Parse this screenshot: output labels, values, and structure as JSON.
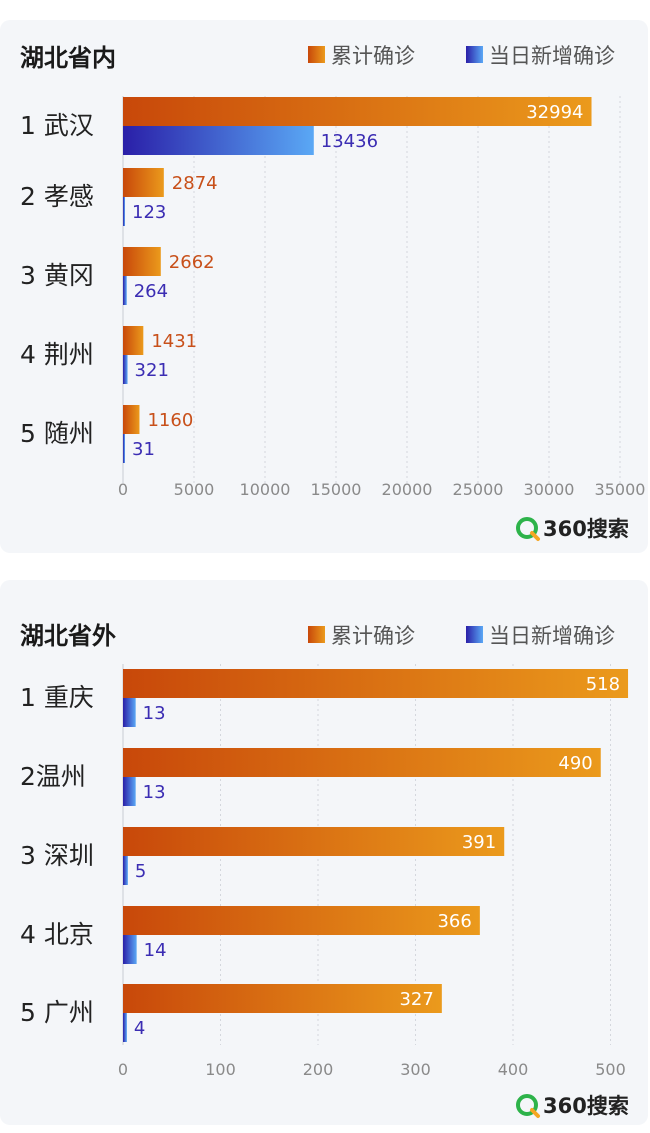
{
  "charts": [
    {
      "title": "湖北省内",
      "legend": {
        "cumulative": "累计确诊",
        "new": "当日新增确诊"
      },
      "brand": "360搜索",
      "categories": [
        "1 武汉",
        "2 孝感",
        "3 黄冈",
        "4 荆州",
        "5 随州"
      ]
    },
    {
      "title": "湖北省外",
      "legend": {
        "cumulative": "累计确诊",
        "new": "当日新增确诊"
      },
      "brand": "360搜索",
      "categories": [
        "1 重庆",
        "2温州",
        "3 深圳",
        "4 北京",
        "5 广州"
      ]
    }
  ],
  "chart_data": [
    {
      "type": "bar",
      "orientation": "horizontal",
      "title": "湖北省内",
      "categories": [
        "1 武汉",
        "2 孝感",
        "3 黄冈",
        "4 荆州",
        "5 随州"
      ],
      "series": [
        {
          "name": "累计确诊",
          "values": [
            32994,
            2874,
            2662,
            1431,
            1160
          ]
        },
        {
          "name": "当日新增确诊",
          "values": [
            13436,
            123,
            264,
            321,
            31
          ]
        }
      ],
      "xlim": [
        0,
        35000
      ],
      "xticks": [
        0,
        5000,
        10000,
        15000,
        20000,
        25000,
        30000,
        35000
      ],
      "grid": true,
      "legend_position": "top-right"
    },
    {
      "type": "bar",
      "orientation": "horizontal",
      "title": "湖北省外",
      "categories": [
        "1 重庆",
        "2温州",
        "3 深圳",
        "4 北京",
        "5 广州"
      ],
      "series": [
        {
          "name": "累计确诊",
          "values": [
            518,
            490,
            391,
            366,
            327
          ]
        },
        {
          "name": "当日新增确诊",
          "values": [
            13,
            13,
            5,
            14,
            4
          ]
        }
      ],
      "xlim": [
        0,
        520
      ],
      "xticks": [
        0,
        100,
        200,
        300,
        400,
        500
      ],
      "grid": true,
      "legend_position": "top-right"
    }
  ],
  "colors": {
    "cumulative_start": "#c8480a",
    "cumulative_end": "#eb9a1c",
    "new_start": "#2a1fa8",
    "new_end": "#5aa8f5",
    "panel_bg": "#f4f6f9"
  }
}
